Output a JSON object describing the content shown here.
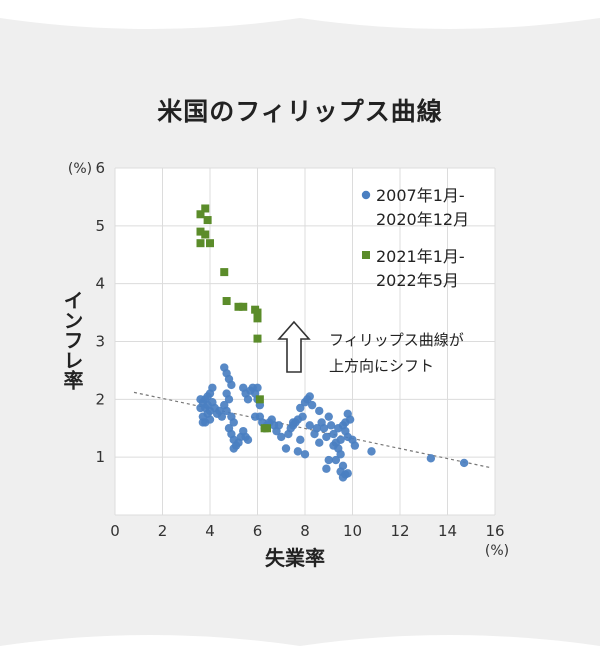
{
  "chart_data": {
    "type": "scatter",
    "title": "米国のフィリップス曲線",
    "xlabel": "失業率",
    "ylabel": "インフレ率",
    "x_unit": "(%)",
    "y_unit": "(%)",
    "xlim": [
      0,
      16
    ],
    "ylim": [
      0,
      6
    ],
    "xticks": [
      "0",
      "2",
      "4",
      "6",
      "8",
      "10",
      "12",
      "14",
      "16"
    ],
    "yticks": [
      "1",
      "2",
      "3",
      "4",
      "5",
      "6"
    ],
    "grid": true,
    "legend_position": "top-right",
    "annotation": [
      "フィリップス曲線が",
      "上方向にシフト"
    ],
    "trend_line": [
      [
        0.8,
        2.12
      ],
      [
        15.8,
        0.82
      ]
    ],
    "series": [
      {
        "name": "2007年1月-2020年12月",
        "color": "#4a7fc1",
        "marker": "circle",
        "points": [
          [
            3.6,
            1.85
          ],
          [
            3.7,
            1.95
          ],
          [
            3.8,
            2.0
          ],
          [
            3.9,
            1.9
          ],
          [
            4.0,
            1.8
          ],
          [
            3.7,
            1.7
          ],
          [
            3.8,
            1.6
          ],
          [
            3.9,
            2.05
          ],
          [
            4.0,
            2.1
          ],
          [
            4.1,
            1.95
          ],
          [
            4.2,
            1.85
          ],
          [
            4.3,
            1.75
          ],
          [
            4.1,
            2.2
          ],
          [
            3.6,
            2.0
          ],
          [
            3.7,
            1.6
          ],
          [
            3.8,
            1.85
          ],
          [
            3.9,
            1.75
          ],
          [
            4.0,
            1.65
          ],
          [
            4.4,
            1.8
          ],
          [
            4.5,
            1.7
          ],
          [
            4.6,
            2.55
          ],
          [
            4.7,
            2.45
          ],
          [
            4.8,
            2.35
          ],
          [
            4.9,
            2.25
          ],
          [
            4.7,
            2.1
          ],
          [
            4.8,
            2.0
          ],
          [
            4.6,
            1.9
          ],
          [
            4.7,
            1.8
          ],
          [
            4.9,
            1.7
          ],
          [
            5.0,
            1.6
          ],
          [
            4.8,
            1.5
          ],
          [
            4.9,
            1.4
          ],
          [
            5.0,
            1.3
          ],
          [
            5.1,
            1.2
          ],
          [
            5.0,
            1.15
          ],
          [
            5.2,
            1.25
          ],
          [
            5.3,
            1.35
          ],
          [
            5.4,
            1.45
          ],
          [
            5.5,
            1.35
          ],
          [
            5.6,
            1.3
          ],
          [
            5.4,
            2.2
          ],
          [
            5.5,
            2.1
          ],
          [
            5.6,
            2.0
          ],
          [
            5.7,
            2.15
          ],
          [
            5.8,
            2.2
          ],
          [
            5.9,
            2.1
          ],
          [
            6.0,
            2.2
          ],
          [
            6.1,
            1.9
          ],
          [
            5.9,
            1.7
          ],
          [
            6.1,
            1.7
          ],
          [
            6.2,
            1.6
          ],
          [
            6.3,
            1.5
          ],
          [
            6.4,
            1.55
          ],
          [
            6.5,
            1.6
          ],
          [
            6.6,
            1.65
          ],
          [
            6.7,
            1.55
          ],
          [
            6.8,
            1.45
          ],
          [
            6.9,
            1.55
          ],
          [
            7.0,
            1.35
          ],
          [
            7.2,
            1.15
          ],
          [
            7.3,
            1.4
          ],
          [
            7.4,
            1.5
          ],
          [
            7.5,
            1.55
          ],
          [
            7.6,
            1.6
          ],
          [
            7.7,
            1.65
          ],
          [
            7.8,
            1.85
          ],
          [
            7.9,
            1.7
          ],
          [
            8.0,
            1.95
          ],
          [
            8.1,
            2.0
          ],
          [
            8.2,
            2.05
          ],
          [
            8.3,
            1.9
          ],
          [
            8.2,
            1.55
          ],
          [
            7.8,
            1.3
          ],
          [
            8.0,
            1.05
          ],
          [
            7.7,
            1.1
          ],
          [
            8.4,
            1.4
          ],
          [
            8.5,
            1.5
          ],
          [
            8.6,
            1.8
          ],
          [
            8.7,
            1.6
          ],
          [
            8.8,
            1.5
          ],
          [
            8.9,
            1.35
          ],
          [
            9.0,
            1.7
          ],
          [
            9.1,
            1.55
          ],
          [
            9.2,
            1.4
          ],
          [
            9.3,
            1.25
          ],
          [
            9.4,
            1.5
          ],
          [
            9.5,
            1.3
          ],
          [
            9.6,
            1.55
          ],
          [
            9.7,
            1.6
          ],
          [
            9.8,
            1.75
          ],
          [
            9.9,
            1.65
          ],
          [
            9.7,
            1.45
          ],
          [
            9.8,
            1.35
          ],
          [
            9.5,
            1.05
          ],
          [
            9.4,
            1.15
          ],
          [
            9.6,
            0.85
          ],
          [
            9.5,
            0.75
          ],
          [
            9.7,
            0.7
          ],
          [
            9.6,
            0.65
          ],
          [
            9.8,
            0.72
          ],
          [
            9.3,
            0.95
          ],
          [
            8.9,
            0.8
          ],
          [
            9.0,
            0.95
          ],
          [
            10.0,
            1.3
          ],
          [
            10.1,
            1.2
          ],
          [
            10.8,
            1.1
          ],
          [
            9.2,
            1.2
          ],
          [
            8.6,
            1.25
          ],
          [
            7.5,
            1.6
          ],
          [
            6.0,
            2.0
          ],
          [
            13.3,
            0.98
          ],
          [
            14.7,
            0.9
          ]
        ]
      },
      {
        "name": "2021年1月-2022年5月",
        "color": "#5b8c2a",
        "marker": "square",
        "points": [
          [
            3.6,
            5.2
          ],
          [
            3.8,
            5.3
          ],
          [
            3.9,
            5.1
          ],
          [
            3.6,
            4.9
          ],
          [
            3.8,
            4.85
          ],
          [
            3.6,
            4.7
          ],
          [
            4.0,
            4.7
          ],
          [
            4.6,
            4.2
          ],
          [
            4.7,
            3.7
          ],
          [
            5.2,
            3.6
          ],
          [
            5.4,
            3.6
          ],
          [
            5.9,
            3.55
          ],
          [
            6.0,
            3.5
          ],
          [
            6.0,
            3.4
          ],
          [
            6.0,
            3.05
          ],
          [
            6.1,
            2.0
          ],
          [
            6.3,
            1.5
          ],
          [
            6.4,
            1.5
          ]
        ]
      }
    ]
  }
}
